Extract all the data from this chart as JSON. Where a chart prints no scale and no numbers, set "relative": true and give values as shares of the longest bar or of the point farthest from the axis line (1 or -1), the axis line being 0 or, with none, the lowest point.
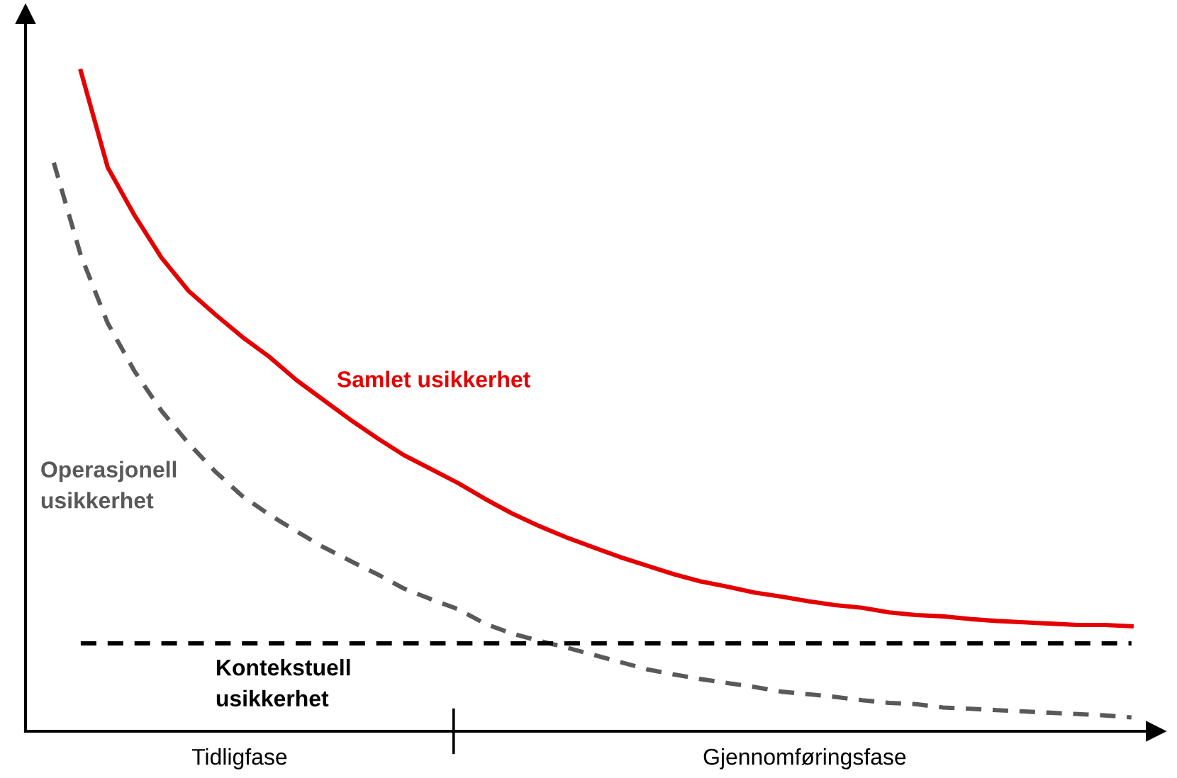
{
  "chart_data": {
    "type": "line",
    "relative": true,
    "legend": false,
    "marker": "none",
    "categories": [
      null,
      null,
      null,
      null,
      null,
      null,
      null,
      null,
      null,
      null,
      null,
      null,
      null,
      null,
      null,
      null,
      null,
      null,
      null,
      null,
      null,
      null,
      null,
      null,
      null,
      null,
      null,
      null,
      null,
      null,
      null,
      null,
      null,
      null,
      null,
      null,
      null,
      null,
      null,
      null,
      null
    ],
    "series": [
      {
        "name": "Samlet usikkerhet",
        "color": "#e50000",
        "line_style": "solid",
        "values": [
          null,
          1.0,
          0.854,
          0.781,
          0.717,
          0.667,
          0.631,
          0.597,
          0.567,
          0.532,
          0.502,
          0.472,
          0.444,
          0.418,
          0.397,
          0.376,
          0.352,
          0.33,
          0.311,
          0.294,
          0.279,
          0.264,
          0.251,
          0.238,
          0.227,
          0.219,
          0.21,
          0.204,
          0.197,
          0.191,
          0.187,
          0.18,
          0.176,
          0.174,
          0.17,
          0.167,
          0.165,
          0.163,
          0.161,
          0.161,
          0.159
        ]
      },
      {
        "name": "Operasjonell\nusikkerhet",
        "color": "#595959",
        "line_style": "dashed",
        "values": [
          0.861,
          0.721,
          0.618,
          0.545,
          0.485,
          0.436,
          0.393,
          0.356,
          0.328,
          0.303,
          0.279,
          0.258,
          0.238,
          0.216,
          0.2,
          0.185,
          0.163,
          0.148,
          0.137,
          0.127,
          0.116,
          0.105,
          0.094,
          0.086,
          0.079,
          0.073,
          0.067,
          0.06,
          0.056,
          0.052,
          0.047,
          0.043,
          0.041,
          0.036,
          0.034,
          0.032,
          0.03,
          0.028,
          0.026,
          0.024,
          0.021
        ]
      },
      {
        "name": "Kontekstuell\nusikkerhet",
        "color": "#000000",
        "line_style": "dashed",
        "values": [
          null,
          0.133,
          0.133,
          0.133,
          0.133,
          0.133,
          0.133,
          0.133,
          0.133,
          0.133,
          0.133,
          0.133,
          0.133,
          0.133,
          0.133,
          0.133,
          0.133,
          0.133,
          0.133,
          0.133,
          0.133,
          0.133,
          0.133,
          0.133,
          0.133,
          0.133,
          0.133,
          0.133,
          0.133,
          0.133,
          0.133,
          0.133,
          0.133,
          0.133,
          0.133,
          0.133,
          0.133,
          0.133,
          0.133,
          0.133,
          0.133
        ]
      }
    ],
    "annotations": [
      "Tidligfase",
      "Gjennomføringsfase"
    ]
  }
}
